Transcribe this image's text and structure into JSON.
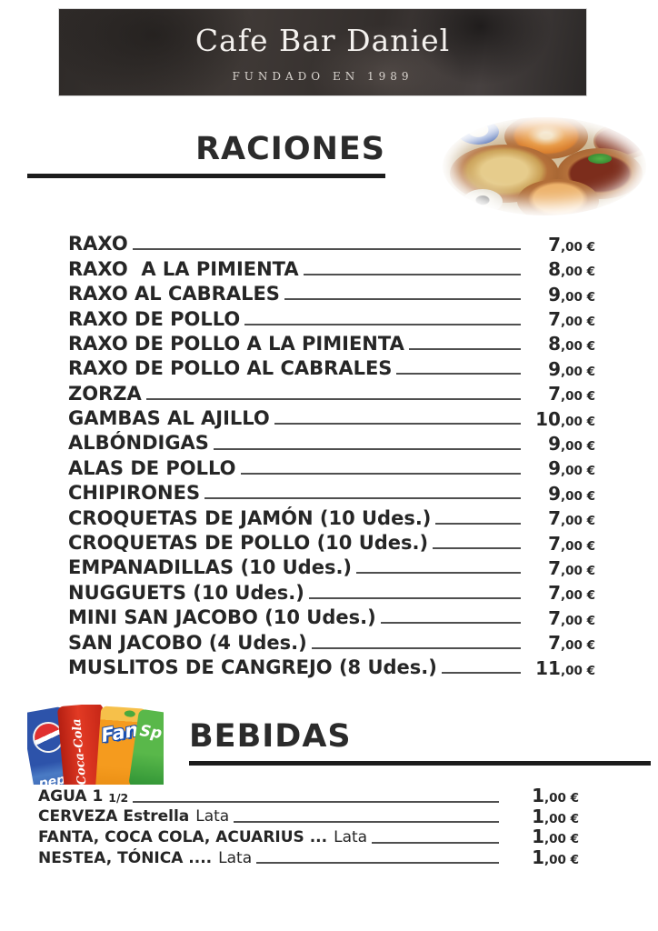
{
  "header": {
    "title": "Cafe Bar Daniel",
    "subtitle": "FUNDADO EN 1989"
  },
  "sections": [
    {
      "id": "raciones",
      "title": "RACIONES",
      "items": [
        {
          "label": "RAXO",
          "price_big": "7",
          "price_small": ",00 €"
        },
        {
          "label": "RAXO  A LA PIMIENTA",
          "price_big": "8",
          "price_small": ",00 €"
        },
        {
          "label": "RAXO AL CABRALES",
          "price_big": "9",
          "price_small": ",00 €"
        },
        {
          "label": "RAXO DE POLLO",
          "price_big": "7",
          "price_small": ",00 €"
        },
        {
          "label": "RAXO DE POLLO A LA PIMIENTA",
          "price_big": "8",
          "price_small": ",00 €"
        },
        {
          "label": "RAXO DE POLLO AL CABRALES",
          "price_big": "9",
          "price_small": ",00 €"
        },
        {
          "label": "ZORZA",
          "price_big": "7",
          "price_small": ",00 €"
        },
        {
          "label": "GAMBAS AL AJILLO",
          "price_big": "10",
          "price_small": ",00 €"
        },
        {
          "label": "ALBÓNDIGAS",
          "price_big": "9",
          "price_small": ",00 €"
        },
        {
          "label": "ALAS DE POLLO",
          "price_big": "9",
          "price_small": ",00 €"
        },
        {
          "label": "CHIPIRONES",
          "price_big": "9",
          "price_small": ",00 €"
        },
        {
          "label": "CROQUETAS DE JAMÓN (10 Udes.)",
          "price_big": "7",
          "price_small": ",00 €"
        },
        {
          "label": "CROQUETAS DE POLLO (10 Udes.)",
          "price_big": "7",
          "price_small": ",00 €"
        },
        {
          "label": "EMPANADILLAS (10 Udes.)",
          "price_big": "7",
          "price_small": ",00 €"
        },
        {
          "label": "NUGGUETS (10 Udes.)",
          "price_big": "7",
          "price_small": ",00 €"
        },
        {
          "label": "MINI SAN JACOBO (10 Udes.)",
          "price_big": "7",
          "price_small": ",00 €"
        },
        {
          "label": "SAN JACOBO (4 Udes.)",
          "price_big": "7",
          "price_small": ",00 €"
        },
        {
          "label": "MUSLITOS DE CANGREJO (8 Udes.)",
          "price_big": "11",
          "price_small": ",00 €"
        }
      ]
    },
    {
      "id": "bebidas",
      "title": "BEBIDAS",
      "items": [
        {
          "label": "AGUA 1",
          "suffix": "1/2",
          "suffix_class": "frac",
          "price_big": "1",
          "price_small": ",00 €"
        },
        {
          "label": "CERVEZA Estrella",
          "suffix": "Lata",
          "suffix_class": "light",
          "price_big": "1",
          "price_small": ",00 €"
        },
        {
          "label": "FANTA, COCA COLA, ACUARIUS ...",
          "suffix": "Lata",
          "suffix_class": "light",
          "price_big": "1",
          "price_small": ",00 €"
        },
        {
          "label": "NESTEA, TÓNICA ....",
          "suffix": "Lata",
          "suffix_class": "light",
          "price_big": "1",
          "price_small": ",00 €"
        }
      ]
    }
  ],
  "photos": {
    "tapas_name": "tapas-clay-bowls-photo",
    "can_labels": [
      "pep",
      "Coca-Cola",
      "Fan",
      "Sp"
    ]
  },
  "colors": {
    "text": "#262626",
    "leader_line": "#4f4f4f",
    "title_underline": "#1c1c1c"
  }
}
